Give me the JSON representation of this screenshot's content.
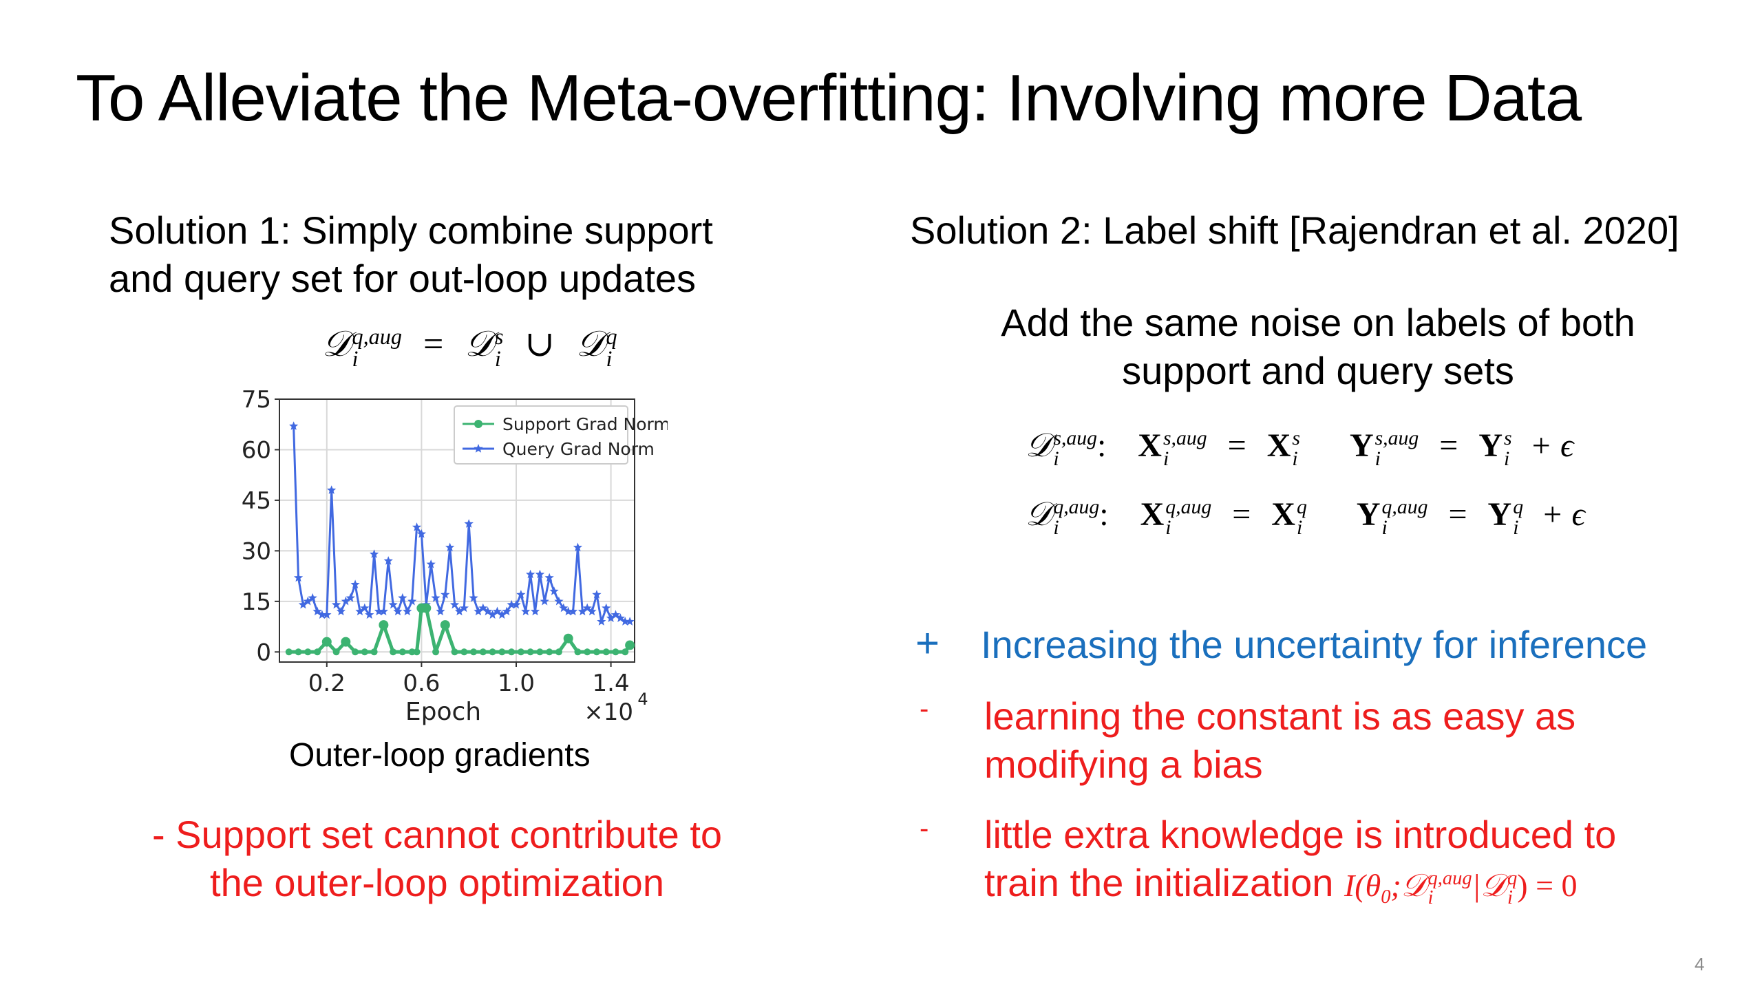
{
  "slide": {
    "title": "To Alleviate the Meta-overfitting: Involving more Data",
    "page_number": "4"
  },
  "solution1": {
    "heading_line1": "Solution 1: Simply combine support",
    "heading_line2": "and query set for out-loop updates",
    "formula": {
      "lhs_symbol": "𝒟",
      "lhs_sup": "q,aug",
      "lhs_sub": "i",
      "equals": "=",
      "term1_symbol": "𝒟",
      "term1_sup": "s",
      "term1_sub": "i",
      "union": "∪",
      "term2_symbol": "𝒟",
      "term2_sup": "q",
      "term2_sub": "i"
    },
    "chart_caption": "Outer-loop gradients",
    "con_line1": "- Support set cannot contribute to",
    "con_line2": "the outer-loop optimization"
  },
  "solution2": {
    "heading": "Solution 2: Label shift [Rajendran et al. 2020]",
    "desc_line1": "Add the same noise on labels of both",
    "desc_line2": "support and query sets",
    "eq_support": {
      "set_symbol": "𝒟",
      "set_sup": "s,aug",
      "sub": "i",
      "colon": ":",
      "x_symbol": "X",
      "x_sup": "s,aug",
      "x_rhs_sup": "s",
      "y_symbol": "Y",
      "y_sup": "s,aug",
      "y_rhs_sup": "s",
      "plus_noise": "+ ϵ",
      "equals": "="
    },
    "eq_query": {
      "set_symbol": "𝒟",
      "set_sup": "q,aug",
      "sub": "i",
      "colon": ":",
      "x_symbol": "X",
      "x_sup": "q,aug",
      "x_rhs_sup": "q",
      "y_symbol": "Y",
      "y_sup": "q,aug",
      "y_rhs_sup": "q",
      "plus_noise": "+ ϵ",
      "equals": "="
    },
    "pro_marker": "+",
    "pro_text": "Increasing the uncertainty for inference",
    "con1_marker": "-",
    "con1_line1": "learning the constant is as easy as",
    "con1_line2": "modifying a bias",
    "con2_marker": "-",
    "con2_line1": "little extra knowledge is introduced to",
    "con2_line2": "train the initialization",
    "mutual_info": {
      "prefix": "I(θ",
      "theta_sub": "0",
      "sep": ";𝒟",
      "aug_sup": "q,aug",
      "aug_sub": "i",
      "bar": "|𝒟",
      "q_sup": "q",
      "q_sub": "i",
      "suffix": ") = 0"
    }
  },
  "colors": {
    "support_series": "#3cb371",
    "query_series": "#4169e1",
    "pro_text": "#1a6fbd",
    "con_text": "#ee1d1d"
  },
  "chart_data": {
    "type": "line",
    "xlabel": "Epoch",
    "x_multiplier_label": "×10",
    "x_multiplier_exp": "4",
    "xlim": [
      0,
      1.5
    ],
    "ylim": [
      -3,
      75
    ],
    "xticks": [
      0.2,
      0.6,
      1.0,
      1.4
    ],
    "xtick_labels": [
      "0.2",
      "0.6",
      "1.0",
      "1.4"
    ],
    "yticks": [
      0,
      15,
      30,
      45,
      60,
      75
    ],
    "ytick_labels": [
      "0",
      "15",
      "30",
      "45",
      "60",
      "75"
    ],
    "grid": true,
    "legend_position": "top-right",
    "series": [
      {
        "name": "Support Grad Norm",
        "marker": "circle",
        "x": [
          0.04,
          0.08,
          0.12,
          0.16,
          0.2,
          0.24,
          0.28,
          0.32,
          0.36,
          0.4,
          0.44,
          0.48,
          0.52,
          0.56,
          0.58,
          0.6,
          0.62,
          0.66,
          0.7,
          0.74,
          0.78,
          0.82,
          0.86,
          0.9,
          0.94,
          0.98,
          1.02,
          1.06,
          1.1,
          1.14,
          1.18,
          1.22,
          1.26,
          1.3,
          1.34,
          1.38,
          1.42,
          1.46,
          1.48
        ],
        "y": [
          0,
          0,
          0,
          0,
          3,
          0,
          3,
          0,
          0,
          0,
          8,
          0,
          0,
          0,
          0,
          13,
          13,
          0,
          8,
          0,
          0,
          0,
          0,
          0,
          0,
          0,
          0,
          0,
          0,
          0,
          0,
          4,
          0,
          0,
          0,
          0,
          0,
          0,
          2
        ]
      },
      {
        "name": "Query Grad Norm",
        "marker": "star",
        "x": [
          0.06,
          0.08,
          0.1,
          0.12,
          0.14,
          0.16,
          0.18,
          0.2,
          0.22,
          0.24,
          0.26,
          0.28,
          0.3,
          0.32,
          0.34,
          0.36,
          0.38,
          0.4,
          0.42,
          0.44,
          0.46,
          0.48,
          0.5,
          0.52,
          0.54,
          0.56,
          0.58,
          0.6,
          0.62,
          0.64,
          0.66,
          0.68,
          0.7,
          0.72,
          0.74,
          0.76,
          0.78,
          0.8,
          0.82,
          0.84,
          0.86,
          0.88,
          0.9,
          0.92,
          0.94,
          0.96,
          0.98,
          1.0,
          1.02,
          1.04,
          1.06,
          1.08,
          1.1,
          1.12,
          1.14,
          1.16,
          1.18,
          1.2,
          1.22,
          1.24,
          1.26,
          1.28,
          1.3,
          1.32,
          1.34,
          1.36,
          1.38,
          1.4,
          1.42,
          1.44,
          1.46,
          1.48
        ],
        "y": [
          67,
          22,
          14,
          15,
          16,
          12,
          11,
          11,
          48,
          14,
          12,
          15,
          16,
          20,
          12,
          13,
          11,
          29,
          12,
          12,
          27,
          14,
          12,
          16,
          12,
          15,
          37,
          35,
          14,
          26,
          16,
          12,
          17,
          31,
          14,
          12,
          13,
          38,
          16,
          12,
          13,
          12,
          11,
          12,
          11,
          12,
          14,
          14,
          17,
          12,
          23,
          12,
          23,
          15,
          22,
          18,
          15,
          13,
          12,
          12,
          31,
          12,
          13,
          12,
          17,
          9,
          13,
          10,
          11,
          10,
          9,
          9
        ]
      }
    ]
  }
}
